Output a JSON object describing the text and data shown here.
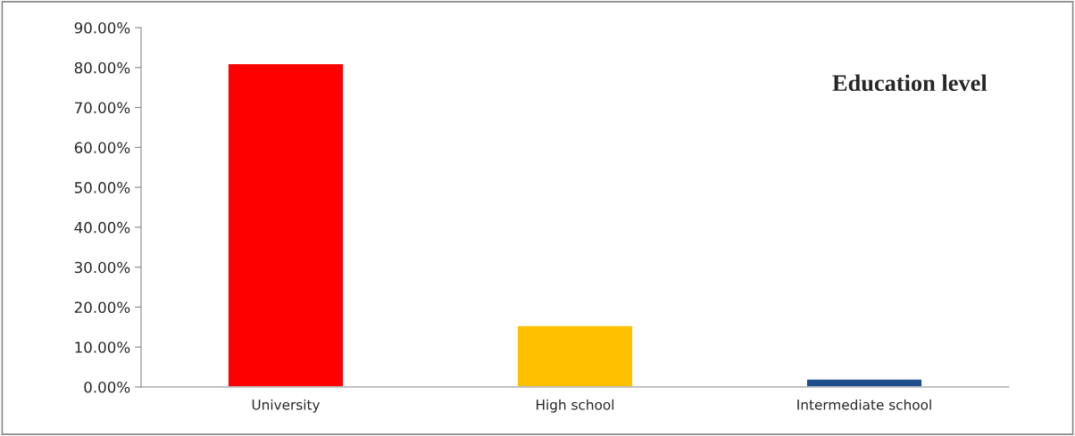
{
  "chart_data": {
    "type": "bar",
    "title": "Education level",
    "categories": [
      "University",
      "High school",
      "Intermediate school"
    ],
    "values": [
      81,
      15.4,
      2
    ],
    "colors": [
      "#ff0000",
      "#ffc000",
      "#1f4e8c"
    ],
    "ylim": [
      0,
      90
    ],
    "yticks": [
      {
        "value": 0,
        "label": "0.00%"
      },
      {
        "value": 10,
        "label": "10.00%"
      },
      {
        "value": 20,
        "label": "20.00%"
      },
      {
        "value": 30,
        "label": "30.00%"
      },
      {
        "value": 40,
        "label": "40.00%"
      },
      {
        "value": 50,
        "label": "50.00%"
      },
      {
        "value": 60,
        "label": "60.00%"
      },
      {
        "value": 70,
        "label": "70.00%"
      },
      {
        "value": 80,
        "label": "80.00%"
      },
      {
        "value": 90,
        "label": "90.00%"
      }
    ],
    "grid": false,
    "legend": false
  }
}
